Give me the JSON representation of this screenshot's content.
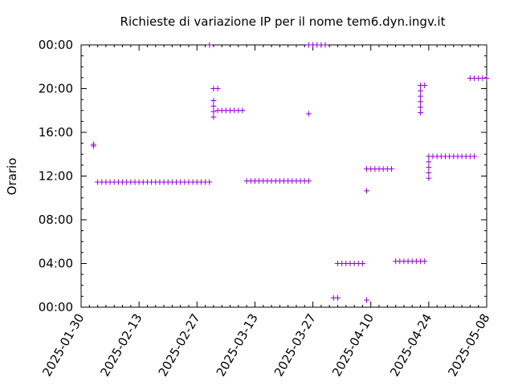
{
  "chart_data": {
    "type": "scatter",
    "title": "Richieste di variazione IP per il nome tem6.dyn.ingv.it",
    "xlabel": "",
    "ylabel": "Orario",
    "x_ticks": [
      "2025-01-30",
      "2025-02-13",
      "2025-02-27",
      "2025-03-13",
      "2025-03-27",
      "2025-04-10",
      "2025-04-24",
      "2025-05-08"
    ],
    "y_ticks": [
      "00:00",
      "04:00",
      "08:00",
      "12:00",
      "16:00",
      "20:00",
      "00:00"
    ],
    "xlim": [
      "2025-01-30",
      "2025-05-08"
    ],
    "ylim_hours": [
      0,
      24
    ],
    "grid": false,
    "series_color": "#9400d3",
    "points": [
      {
        "x": "2025-02-02",
        "y": 14.9
      },
      {
        "x": "2025-02-02",
        "y": 14.75
      },
      {
        "x": "2025-02-03",
        "y": 11.45
      },
      {
        "x": "2025-02-04",
        "y": 11.45
      },
      {
        "x": "2025-02-05",
        "y": 11.45
      },
      {
        "x": "2025-02-06",
        "y": 11.45
      },
      {
        "x": "2025-02-07",
        "y": 11.45
      },
      {
        "x": "2025-02-08",
        "y": 11.45
      },
      {
        "x": "2025-02-09",
        "y": 11.45
      },
      {
        "x": "2025-02-10",
        "y": 11.45
      },
      {
        "x": "2025-02-11",
        "y": 11.45
      },
      {
        "x": "2025-02-12",
        "y": 11.45
      },
      {
        "x": "2025-02-13",
        "y": 11.45
      },
      {
        "x": "2025-02-14",
        "y": 11.45
      },
      {
        "x": "2025-02-15",
        "y": 11.45
      },
      {
        "x": "2025-02-16",
        "y": 11.45
      },
      {
        "x": "2025-02-17",
        "y": 11.45
      },
      {
        "x": "2025-02-18",
        "y": 11.45
      },
      {
        "x": "2025-02-19",
        "y": 11.45
      },
      {
        "x": "2025-02-20",
        "y": 11.45
      },
      {
        "x": "2025-02-21",
        "y": 11.45
      },
      {
        "x": "2025-02-22",
        "y": 11.45
      },
      {
        "x": "2025-02-23",
        "y": 11.45
      },
      {
        "x": "2025-02-24",
        "y": 11.45
      },
      {
        "x": "2025-02-25",
        "y": 11.45
      },
      {
        "x": "2025-02-26",
        "y": 11.45
      },
      {
        "x": "2025-02-27",
        "y": 11.45
      },
      {
        "x": "2025-02-28",
        "y": 11.45
      },
      {
        "x": "2025-03-01",
        "y": 11.45
      },
      {
        "x": "2025-03-02",
        "y": 11.45
      },
      {
        "x": "2025-03-02",
        "y": 24.0
      },
      {
        "x": "2025-03-03",
        "y": 20.0
      },
      {
        "x": "2025-03-04",
        "y": 20.0
      },
      {
        "x": "2025-03-03",
        "y": 18.9
      },
      {
        "x": "2025-03-03",
        "y": 18.4
      },
      {
        "x": "2025-03-03",
        "y": 17.9
      },
      {
        "x": "2025-03-03",
        "y": 17.4
      },
      {
        "x": "2025-03-04",
        "y": 18.0
      },
      {
        "x": "2025-03-05",
        "y": 18.0
      },
      {
        "x": "2025-03-06",
        "y": 18.0
      },
      {
        "x": "2025-03-07",
        "y": 18.0
      },
      {
        "x": "2025-03-08",
        "y": 18.0
      },
      {
        "x": "2025-03-09",
        "y": 18.0
      },
      {
        "x": "2025-03-10",
        "y": 18.0
      },
      {
        "x": "2025-03-11",
        "y": 11.55
      },
      {
        "x": "2025-03-12",
        "y": 11.55
      },
      {
        "x": "2025-03-13",
        "y": 11.55
      },
      {
        "x": "2025-03-14",
        "y": 11.55
      },
      {
        "x": "2025-03-15",
        "y": 11.55
      },
      {
        "x": "2025-03-16",
        "y": 11.55
      },
      {
        "x": "2025-03-17",
        "y": 11.55
      },
      {
        "x": "2025-03-18",
        "y": 11.55
      },
      {
        "x": "2025-03-19",
        "y": 11.55
      },
      {
        "x": "2025-03-20",
        "y": 11.55
      },
      {
        "x": "2025-03-21",
        "y": 11.55
      },
      {
        "x": "2025-03-22",
        "y": 11.55
      },
      {
        "x": "2025-03-23",
        "y": 11.55
      },
      {
        "x": "2025-03-24",
        "y": 11.55
      },
      {
        "x": "2025-03-25",
        "y": 11.55
      },
      {
        "x": "2025-03-26",
        "y": 11.55
      },
      {
        "x": "2025-03-26",
        "y": 17.7
      },
      {
        "x": "2025-03-26",
        "y": 24.0
      },
      {
        "x": "2025-03-27",
        "y": 24.0
      },
      {
        "x": "2025-03-28",
        "y": 24.0
      },
      {
        "x": "2025-03-29",
        "y": 24.0
      },
      {
        "x": "2025-03-30",
        "y": 24.0
      },
      {
        "x": "2025-04-01",
        "y": 0.85
      },
      {
        "x": "2025-04-02",
        "y": 0.85
      },
      {
        "x": "2025-04-02",
        "y": 4.0
      },
      {
        "x": "2025-04-03",
        "y": 4.0
      },
      {
        "x": "2025-04-04",
        "y": 4.0
      },
      {
        "x": "2025-04-05",
        "y": 4.0
      },
      {
        "x": "2025-04-06",
        "y": 4.0
      },
      {
        "x": "2025-04-07",
        "y": 4.0
      },
      {
        "x": "2025-04-08",
        "y": 4.0
      },
      {
        "x": "2025-04-09",
        "y": 0.65
      },
      {
        "x": "2025-04-09",
        "y": 10.65
      },
      {
        "x": "2025-04-09",
        "y": 12.65
      },
      {
        "x": "2025-04-10",
        "y": 12.65
      },
      {
        "x": "2025-04-11",
        "y": 12.65
      },
      {
        "x": "2025-04-12",
        "y": 12.65
      },
      {
        "x": "2025-04-13",
        "y": 12.65
      },
      {
        "x": "2025-04-14",
        "y": 12.65
      },
      {
        "x": "2025-04-15",
        "y": 12.65
      },
      {
        "x": "2025-04-16",
        "y": 4.2
      },
      {
        "x": "2025-04-17",
        "y": 4.2
      },
      {
        "x": "2025-04-18",
        "y": 4.2
      },
      {
        "x": "2025-04-19",
        "y": 4.2
      },
      {
        "x": "2025-04-20",
        "y": 4.2
      },
      {
        "x": "2025-04-21",
        "y": 4.2
      },
      {
        "x": "2025-04-22",
        "y": 4.2
      },
      {
        "x": "2025-04-23",
        "y": 4.2
      },
      {
        "x": "2025-04-22",
        "y": 20.3
      },
      {
        "x": "2025-04-23",
        "y": 20.3
      },
      {
        "x": "2025-04-22",
        "y": 19.8
      },
      {
        "x": "2025-04-22",
        "y": 19.3
      },
      {
        "x": "2025-04-22",
        "y": 18.8
      },
      {
        "x": "2025-04-22",
        "y": 18.3
      },
      {
        "x": "2025-04-22",
        "y": 17.8
      },
      {
        "x": "2025-04-24",
        "y": 13.8
      },
      {
        "x": "2025-04-24",
        "y": 13.3
      },
      {
        "x": "2025-04-24",
        "y": 12.8
      },
      {
        "x": "2025-04-24",
        "y": 12.3
      },
      {
        "x": "2025-04-24",
        "y": 11.8
      },
      {
        "x": "2025-04-25",
        "y": 13.8
      },
      {
        "x": "2025-04-26",
        "y": 13.8
      },
      {
        "x": "2025-04-27",
        "y": 13.8
      },
      {
        "x": "2025-04-28",
        "y": 13.8
      },
      {
        "x": "2025-04-29",
        "y": 13.8
      },
      {
        "x": "2025-04-30",
        "y": 13.8
      },
      {
        "x": "2025-05-01",
        "y": 13.8
      },
      {
        "x": "2025-05-02",
        "y": 13.8
      },
      {
        "x": "2025-05-03",
        "y": 13.8
      },
      {
        "x": "2025-05-04",
        "y": 13.8
      },
      {
        "x": "2025-05-05",
        "y": 13.8
      },
      {
        "x": "2025-05-04",
        "y": 20.95
      },
      {
        "x": "2025-05-05",
        "y": 20.95
      },
      {
        "x": "2025-05-06",
        "y": 20.95
      },
      {
        "x": "2025-05-07",
        "y": 20.95
      },
      {
        "x": "2025-05-08",
        "y": 20.95
      },
      {
        "x": "2025-05-09",
        "y": 20.95
      }
    ]
  }
}
